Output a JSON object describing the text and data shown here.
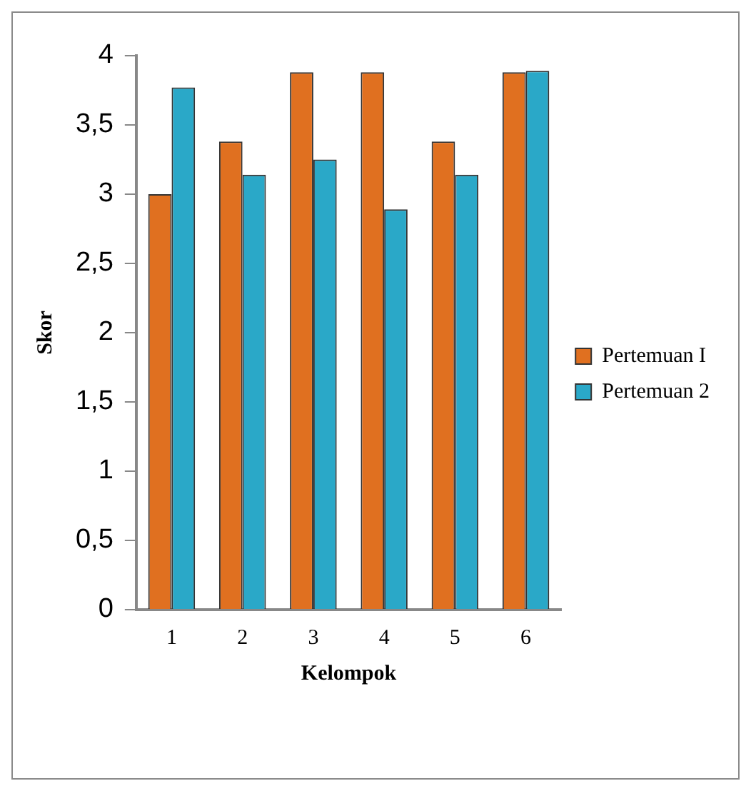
{
  "chart_data": {
    "type": "bar",
    "xlabel": "Kelompok",
    "ylabel": "Skor",
    "categories": [
      "1",
      "2",
      "3",
      "4",
      "5",
      "6"
    ],
    "series": [
      {
        "name": "Pertemuan I",
        "color": "#e07020",
        "values": [
          3,
          3.38,
          3.88,
          3.88,
          3.38,
          3.88
        ]
      },
      {
        "name": "Pertemuan 2",
        "color": "#2aa8c8",
        "values": [
          3.77,
          3.14,
          3.25,
          2.89,
          3.14,
          3.89
        ]
      }
    ],
    "ylim": [
      0,
      4
    ],
    "yticks": [
      0,
      {
        "value": 0.5,
        "label": "0,5"
      },
      1,
      {
        "value": 1.5,
        "label": "1,5"
      },
      2,
      {
        "value": 2.5,
        "label": "2,5"
      },
      3,
      {
        "value": 3.5,
        "label": "3,5"
      },
      4
    ],
    "grid": false,
    "legend": "right"
  }
}
